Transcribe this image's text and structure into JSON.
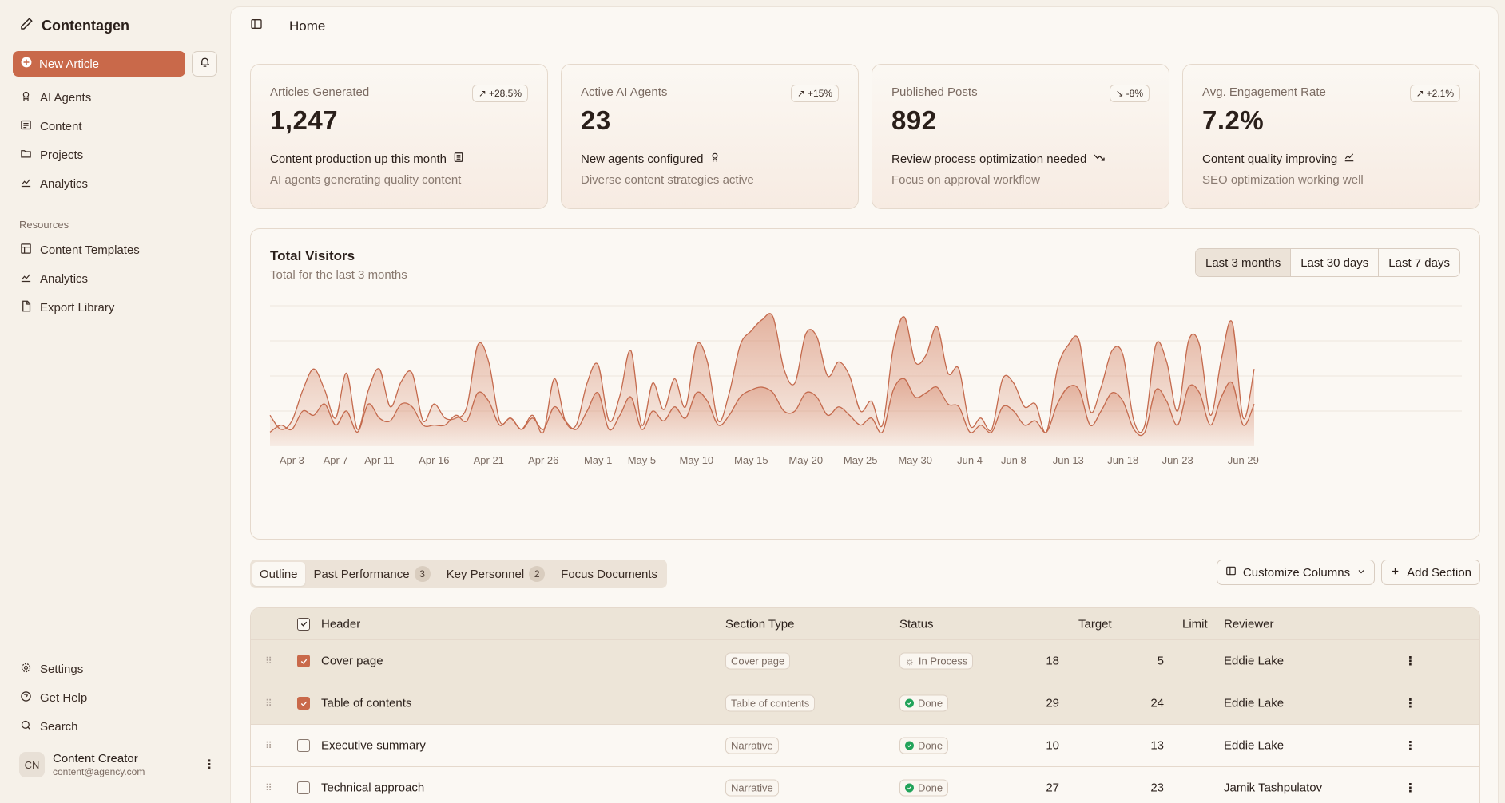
{
  "app": {
    "brand": "Contentagen",
    "new_article": "New Article",
    "nav": [
      {
        "label": "AI Agents",
        "icon": "robot-icon"
      },
      {
        "label": "Content",
        "icon": "list-icon"
      },
      {
        "label": "Projects",
        "icon": "folder-icon"
      },
      {
        "label": "Analytics",
        "icon": "chart-icon"
      }
    ],
    "resources_label": "Resources",
    "resources": [
      {
        "label": "Content Templates",
        "icon": "template-icon"
      },
      {
        "label": "Analytics",
        "icon": "chart-icon"
      },
      {
        "label": "Export Library",
        "icon": "file-icon"
      }
    ],
    "bottom_nav": [
      {
        "label": "Settings",
        "icon": "gear-icon"
      },
      {
        "label": "Get Help",
        "icon": "help-icon"
      },
      {
        "label": "Search",
        "icon": "search-icon"
      }
    ],
    "user": {
      "initials": "CN",
      "name": "Content Creator",
      "email": "content@agency.com"
    }
  },
  "header": {
    "title": "Home"
  },
  "cards": [
    {
      "label": "Articles Generated",
      "value": "1,247",
      "badge": "+28.5%",
      "trend": "up",
      "foot": "Content production up this month",
      "sub": "AI agents generating quality content"
    },
    {
      "label": "Active AI Agents",
      "value": "23",
      "badge": "+15%",
      "trend": "up",
      "foot": "New agents configured",
      "sub": "Diverse content strategies active"
    },
    {
      "label": "Published Posts",
      "value": "892",
      "badge": "-8%",
      "trend": "down",
      "foot": "Review process optimization needed",
      "sub": "Focus on approval workflow"
    },
    {
      "label": "Avg. Engagement Rate",
      "value": "7.2%",
      "badge": "+2.1%",
      "trend": "up",
      "foot": "Content quality improving",
      "sub": "SEO optimization working well"
    }
  ],
  "visitors": {
    "title": "Total Visitors",
    "subtitle": "Total for the last 3 months",
    "ranges": [
      "Last 3 months",
      "Last 30 days",
      "Last 7 days"
    ],
    "active_range": "Last 3 months"
  },
  "chart_data": {
    "type": "area",
    "title": "Total Visitors",
    "subtitle": "Total for the last 3 months",
    "x_ticks": [
      "Apr 3",
      "Apr 7",
      "Apr 11",
      "Apr 16",
      "Apr 21",
      "Apr 26",
      "May 1",
      "May 5",
      "May 10",
      "May 15",
      "May 20",
      "May 25",
      "May 30",
      "Jun 4",
      "Jun 8",
      "Jun 13",
      "Jun 18",
      "Jun 23",
      "Jun 29"
    ],
    "x_start": "Apr 1",
    "x_end": "Jun 30",
    "ylim": [
      0,
      100
    ],
    "grid": true,
    "series": [
      {
        "values": [
          22,
          12,
          18,
          40,
          55,
          40,
          20,
          52,
          12,
          40,
          55,
          28,
          46,
          52,
          18,
          30,
          20,
          20,
          28,
          72,
          60,
          18,
          20,
          12,
          22,
          10,
          48,
          18,
          15,
          45,
          58,
          18,
          36,
          68,
          15,
          45,
          26,
          48,
          28,
          72,
          60,
          18,
          38,
          72,
          82,
          90,
          92,
          55,
          45,
          80,
          78,
          50,
          60,
          50,
          25,
          32,
          15,
          70,
          92,
          60,
          65,
          85,
          52,
          55,
          15,
          20,
          12,
          48,
          45,
          28,
          30,
          10,
          55,
          72,
          75,
          25,
          42,
          68,
          65,
          18,
          15,
          72,
          60,
          25,
          75,
          72,
          22,
          62,
          88,
          20,
          55
        ]
      },
      {
        "values": [
          10,
          15,
          12,
          25,
          22,
          30,
          15,
          25,
          10,
          30,
          20,
          18,
          30,
          28,
          15,
          15,
          15,
          22,
          18,
          38,
          32,
          15,
          20,
          12,
          20,
          12,
          28,
          18,
          12,
          25,
          38,
          12,
          22,
          35,
          12,
          25,
          18,
          28,
          20,
          38,
          32,
          15,
          22,
          35,
          40,
          42,
          38,
          25,
          25,
          38,
          35,
          22,
          28,
          22,
          15,
          20,
          10,
          40,
          48,
          35,
          38,
          42,
          30,
          28,
          10,
          15,
          10,
          28,
          25,
          15,
          18,
          10,
          30,
          42,
          40,
          15,
          25,
          38,
          32,
          12,
          10,
          40,
          32,
          15,
          42,
          38,
          15,
          35,
          45,
          15,
          30
        ]
      }
    ]
  },
  "tabs": [
    {
      "label": "Outline",
      "count": null,
      "active": true
    },
    {
      "label": "Past Performance",
      "count": "3",
      "active": false
    },
    {
      "label": "Key Personnel",
      "count": "2",
      "active": false
    },
    {
      "label": "Focus Documents",
      "count": null,
      "active": false
    }
  ],
  "actions": {
    "customize": "Customize Columns",
    "add_section": "Add Section"
  },
  "table": {
    "columns": {
      "header": "Header",
      "section_type": "Section Type",
      "status": "Status",
      "target": "Target",
      "limit": "Limit",
      "reviewer": "Reviewer"
    },
    "rows": [
      {
        "header": "Cover page",
        "type": "Cover page",
        "status": "In Process",
        "target": "18",
        "limit": "5",
        "reviewer": "Eddie Lake",
        "checked": true
      },
      {
        "header": "Table of contents",
        "type": "Table of contents",
        "status": "Done",
        "target": "29",
        "limit": "24",
        "reviewer": "Eddie Lake",
        "checked": true
      },
      {
        "header": "Executive summary",
        "type": "Narrative",
        "status": "Done",
        "target": "10",
        "limit": "13",
        "reviewer": "Eddie Lake",
        "checked": false
      },
      {
        "header": "Technical approach",
        "type": "Narrative",
        "status": "Done",
        "target": "27",
        "limit": "23",
        "reviewer": "Jamik Tashpulatov",
        "checked": false
      }
    ]
  },
  "colors": {
    "accent": "#c9694a",
    "success": "#22a35a",
    "area_fill": "#d68a6e"
  }
}
